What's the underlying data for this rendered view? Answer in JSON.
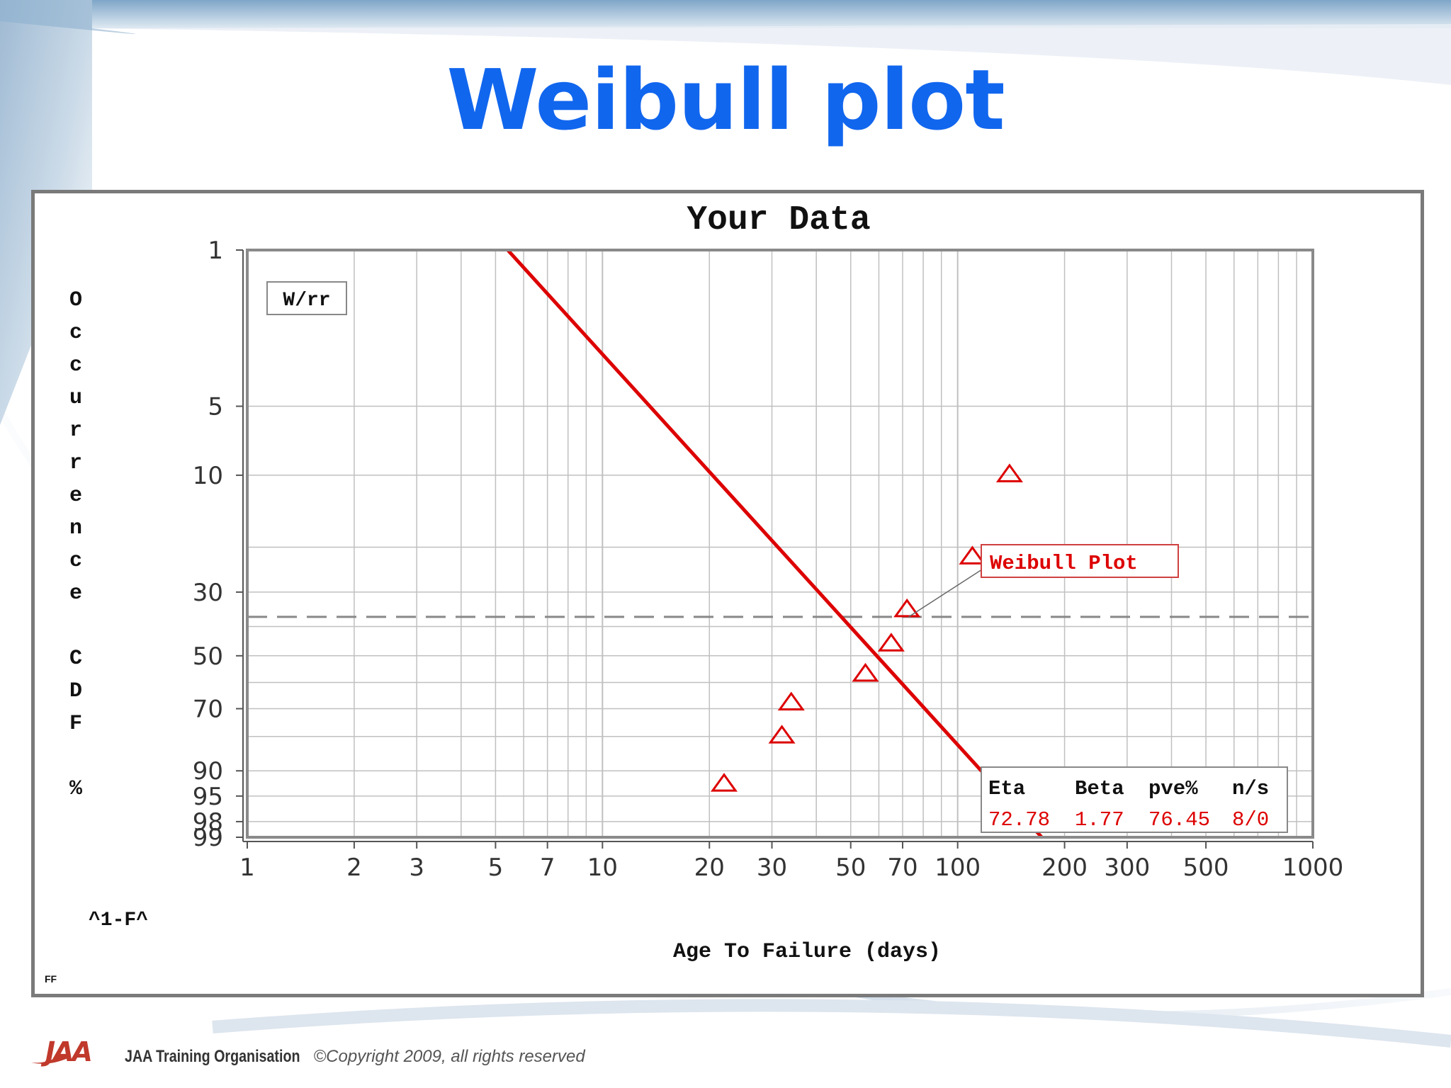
{
  "slide": {
    "title": "Weibull plot",
    "footer_org": "JAA Training Organisation",
    "footer_copyright": "©Copyright 2009, all rights reserved",
    "logo_text": "JAA"
  },
  "colors": {
    "title": "#1166ee",
    "fit_line": "#dd0000",
    "points": "#dd0000",
    "grid": "#c0c0c0",
    "frame": "#7a7a7a"
  },
  "chart_data": {
    "type": "scatter",
    "title": "Your Data",
    "xlabel": "Age To Failure (days)",
    "ylabel": "Occurrence CDF %",
    "y_corner_label": "^1-F^",
    "corner_mark": "FF",
    "x_scale": "log",
    "y_scale": "weibull",
    "xlim": [
      1,
      1000
    ],
    "ylim": [
      1,
      99
    ],
    "x_ticks": [
      1,
      2,
      3,
      5,
      7,
      10,
      20,
      30,
      50,
      70,
      100,
      200,
      300,
      500,
      1000
    ],
    "y_ticks": [
      1,
      5,
      10,
      30,
      50,
      70,
      90,
      95,
      98,
      99
    ],
    "y_grid": [
      1,
      5,
      10,
      20,
      30,
      40,
      50,
      60,
      70,
      80,
      90,
      95,
      98,
      99
    ],
    "grid": true,
    "method_label": "W/rr",
    "series": [
      {
        "name": "Weibull Plot",
        "points": [
          {
            "x": 22,
            "y": 93
          },
          {
            "x": 32,
            "y": 80
          },
          {
            "x": 34,
            "y": 68
          },
          {
            "x": 55,
            "y": 57
          },
          {
            "x": 65,
            "y": 46
          },
          {
            "x": 72,
            "y": 35
          },
          {
            "x": 110,
            "y": 22
          },
          {
            "x": 140,
            "y": 10
          }
        ]
      }
    ],
    "fit": {
      "eta": 72.78,
      "beta": 1.77,
      "pve": 76.45,
      "ns": "8/0"
    },
    "reference_line_y": 37,
    "legend": {
      "headers": [
        "Eta",
        "Beta",
        "pve%",
        "n/s"
      ],
      "values": [
        "72.78",
        "1.77",
        "76.45",
        "8/0"
      ],
      "placement": "bottom-right"
    },
    "annotation": {
      "text": "Weibull Plot",
      "points_to": {
        "x": 72.78,
        "y": 37
      }
    }
  }
}
